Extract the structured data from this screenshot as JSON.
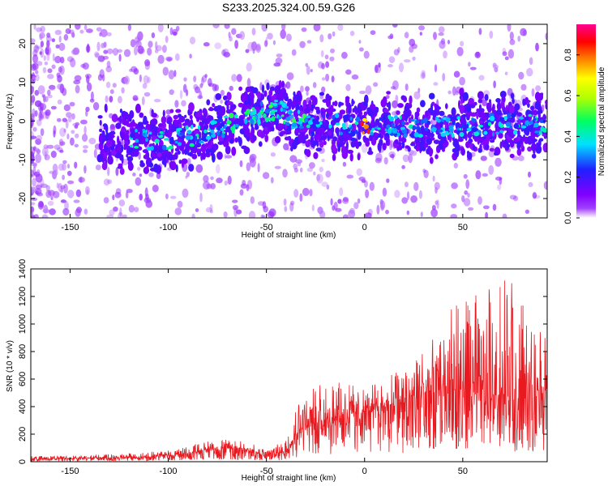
{
  "title": "S233.2025.324.00.59.G26",
  "chart_data": [
    {
      "type": "heatmap",
      "title": "S233.2025.324.00.59.G26",
      "xlabel": "Height of straight line (km)",
      "ylabel": "Frequency (Hz)",
      "xlim": [
        -170,
        93
      ],
      "ylim": [
        -25,
        25
      ],
      "xticks": [
        -150,
        -100,
        -50,
        0,
        50
      ],
      "xtick_labels": [
        "-150",
        "-100",
        "-50",
        "0",
        "50"
      ],
      "yticks": [
        -20,
        -10,
        0,
        10,
        20
      ],
      "ytick_labels": [
        "-20",
        "-10",
        "0",
        "10",
        "20"
      ],
      "colorbar": {
        "label": "Normalized spectral amplitude",
        "range": [
          0,
          0.95
        ],
        "ticks": [
          0.0,
          0.2,
          0.4,
          0.6,
          0.8
        ],
        "tick_labels": [
          "0.0",
          "0.2",
          "0.4",
          "0.6",
          "0.8"
        ],
        "colors": [
          "#ffffff",
          "#8000ff",
          "#2020ff",
          "#00e0ff",
          "#00ff60",
          "#b0ff00",
          "#ffff00",
          "#ff8000",
          "#ff0000",
          "#ff0090"
        ]
      },
      "ridge": {
        "description_points_x": [
          -150,
          -100,
          -80,
          -60,
          -45,
          -30,
          -15,
          0,
          15,
          30,
          50,
          70,
          90
        ],
        "description_points_y": [
          -4,
          -5,
          -3,
          1,
          3,
          -1,
          -1,
          -2,
          -1,
          -2,
          -1,
          -1,
          -1
        ]
      }
    },
    {
      "type": "line",
      "xlabel": "Height of straight line (km)",
      "ylabel": "SNR (10 * v/v)",
      "xlim": [
        -170,
        93
      ],
      "ylim": [
        0,
        1400
      ],
      "xticks": [
        -150,
        -100,
        -50,
        0,
        50
      ],
      "xtick_labels": [
        "-150",
        "-100",
        "-50",
        "0",
        "50"
      ],
      "yticks": [
        0,
        200,
        400,
        600,
        800,
        1000,
        1200,
        1400
      ],
      "ytick_labels": [
        "0",
        "200",
        "400",
        "600",
        "800",
        "1000",
        "1200",
        "1400"
      ],
      "color": "#e8191f",
      "envelope": {
        "x": [
          -170,
          -140,
          -110,
          -90,
          -80,
          -70,
          -60,
          -50,
          -40,
          -33,
          -25,
          -15,
          -5,
          0,
          10,
          20,
          25,
          35,
          45,
          55,
          65,
          75,
          85,
          93
        ],
        "mean": [
          20,
          25,
          35,
          60,
          90,
          100,
          90,
          40,
          80,
          250,
          280,
          330,
          350,
          370,
          400,
          430,
          480,
          500,
          520,
          500,
          480,
          500,
          470,
          500
        ],
        "peak": [
          40,
          50,
          70,
          110,
          150,
          160,
          150,
          80,
          200,
          510,
          550,
          600,
          560,
          520,
          620,
          700,
          800,
          900,
          1140,
          1200,
          1300,
          1400,
          1000,
          900
        ]
      }
    }
  ]
}
